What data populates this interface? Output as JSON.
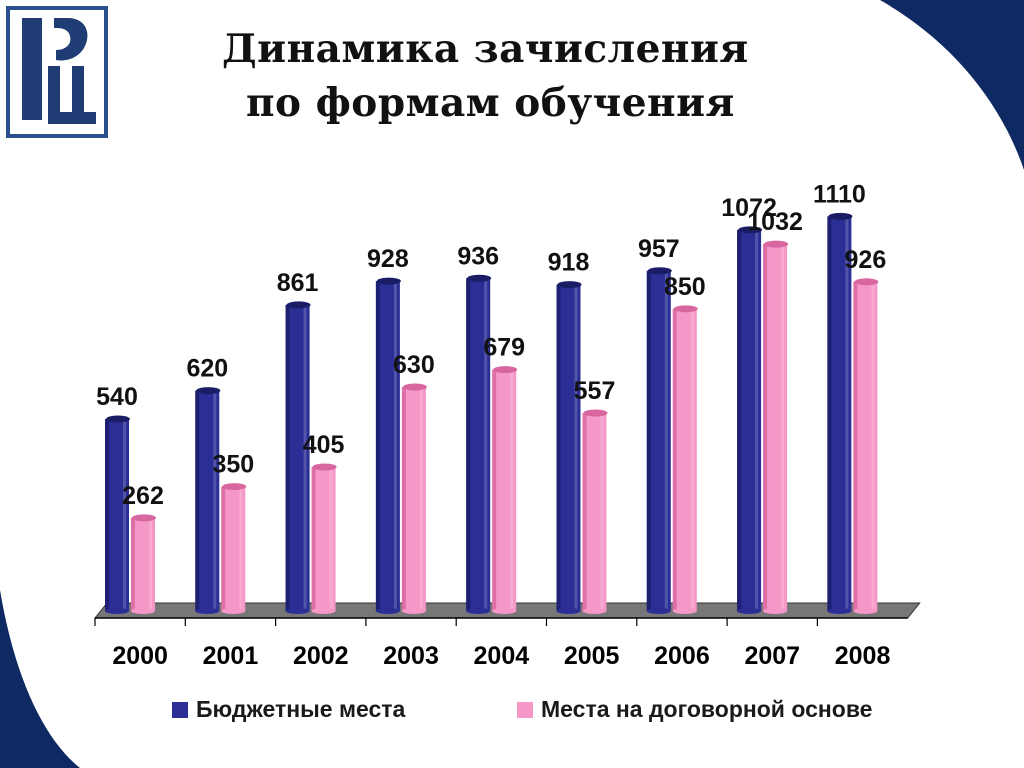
{
  "slide": {
    "title_line1": "Динамика зачисления",
    "title_line2": "по формам обучения",
    "logo_icon": "hse-logo-icon"
  },
  "colors": {
    "background_blue": "#0f2a63",
    "budget_bar": "#2b2f95",
    "budget_bar_dark": "#1a1d66",
    "contract_bar": "#f598c8",
    "contract_bar_dark": "#d8669f",
    "floor": "#777777"
  },
  "chart_data": {
    "type": "bar",
    "categories": [
      "2000",
      "2001",
      "2002",
      "2003",
      "2004",
      "2005",
      "2006",
      "2007",
      "2008"
    ],
    "series": [
      {
        "name": "Бюджетные места",
        "values": [
          540,
          620,
          861,
          928,
          936,
          918,
          957,
          1072,
          1110
        ],
        "labels": [
          "540",
          "620",
          "861",
          "928",
          "936",
          "918",
          "957",
          "1072",
          "1110"
        ]
      },
      {
        "name": "Места на договорной основе",
        "values": [
          262,
          350,
          405,
          630,
          679,
          557,
          850,
          1032,
          926
        ],
        "labels": [
          "262",
          "350",
          "405",
          "630",
          "679",
          "557",
          "850",
          "1032",
          "926"
        ]
      }
    ],
    "ylim": [
      0,
      1150
    ],
    "grid": false,
    "legend": "bottom",
    "style": "3d-cylinder"
  }
}
